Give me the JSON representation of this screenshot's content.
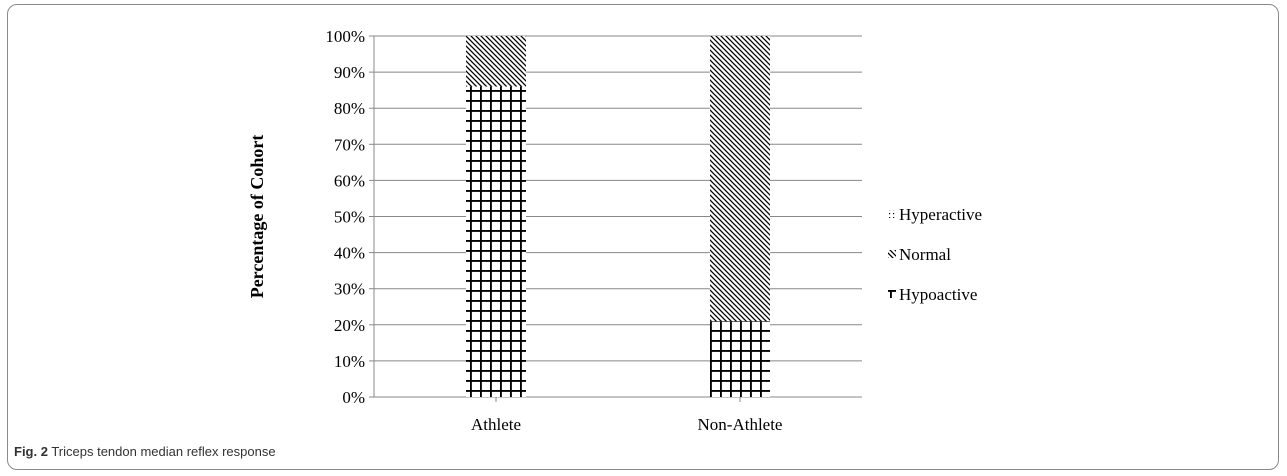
{
  "caption": {
    "label": "Fig. 2",
    "text": " Triceps tendon median reflex response"
  },
  "chart_data": {
    "type": "bar",
    "stacked": true,
    "categories": [
      "Athlete",
      "Non-Athlete"
    ],
    "series": [
      {
        "name": "Hypoactive",
        "values": [
          86,
          21
        ],
        "pattern": "grid"
      },
      {
        "name": "Normal",
        "values": [
          14,
          79
        ],
        "pattern": "diagonal"
      },
      {
        "name": "Hyperactive",
        "values": [
          0,
          0
        ],
        "pattern": "dots"
      }
    ],
    "xlabel": "",
    "ylabel": "Percentage of Cohort",
    "ylim": [
      0,
      100
    ],
    "yticks": [
      "0%",
      "10%",
      "20%",
      "30%",
      "40%",
      "50%",
      "60%",
      "70%",
      "80%",
      "90%",
      "100%"
    ],
    "grid": true,
    "legend": [
      "Hyperactive",
      "Normal",
      "Hypoactive"
    ],
    "legend_position": "right",
    "colors": {
      "ink": "#000000",
      "grid": "#888888",
      "axis": "#888888",
      "text": "#000000"
    }
  }
}
